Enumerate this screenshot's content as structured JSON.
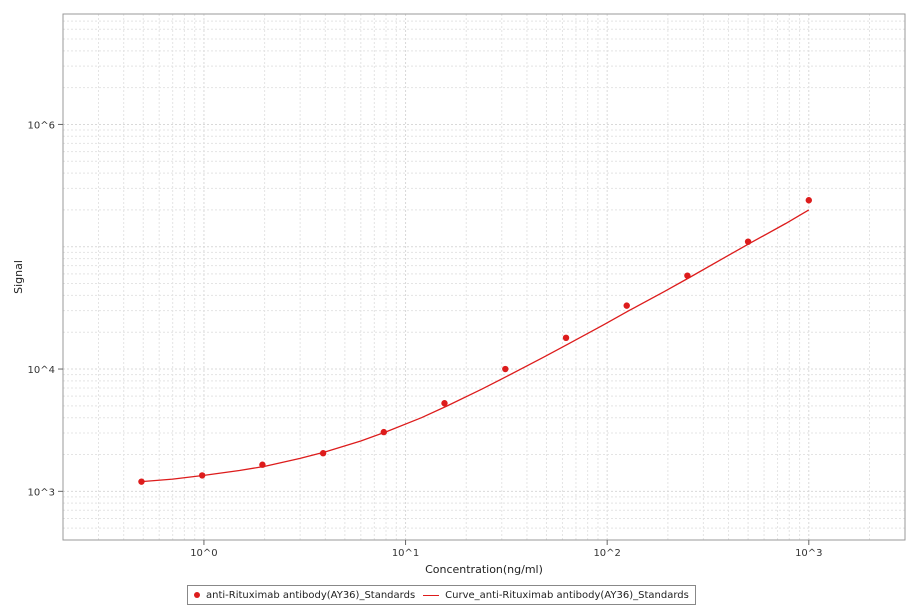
{
  "colors": {
    "series": "#dd1c1c",
    "grid": "#d9d9d9",
    "grid_minor": "#e4e4e4",
    "frame": "#999999"
  },
  "chart_data": {
    "type": "scatter",
    "title": "",
    "xlabel": "Concentration(ng/ml)",
    "ylabel": "Signal",
    "x_scale": "log",
    "y_scale": "log",
    "xlim": [
      0.2,
      3000
    ],
    "ylim": [
      400,
      8000000
    ],
    "grid": true,
    "legend_position": "bottom",
    "x_ticks": [
      {
        "value": 1,
        "label": "10^0"
      },
      {
        "value": 10,
        "label": "10^1"
      },
      {
        "value": 100,
        "label": "10^2"
      },
      {
        "value": 1000,
        "label": "10^3"
      }
    ],
    "y_ticks": [
      {
        "value": 1000,
        "label": "10^3"
      },
      {
        "value": 10000,
        "label": "10^4"
      },
      {
        "value": 1000000,
        "label": "10^6"
      }
    ],
    "series": [
      {
        "name": "anti-Rituximab antibody(AY36)_Standards",
        "kind": "points",
        "x": [
          0.49,
          0.98,
          1.95,
          3.9,
          7.8,
          15.6,
          31.25,
          62.5,
          125,
          250,
          500,
          1000
        ],
        "y": [
          1200,
          1350,
          1650,
          2050,
          3050,
          5250,
          10000,
          18000,
          33000,
          58000,
          110000,
          240000
        ]
      },
      {
        "name": "Curve_anti-Rituximab antibody(AY36)_Standards",
        "kind": "line",
        "x": [
          0.49,
          0.7,
          1,
          1.5,
          2,
          3,
          4,
          6,
          8,
          12,
          16,
          24,
          32,
          48,
          64,
          96,
          128,
          192,
          256,
          384,
          512,
          768,
          1000
        ],
        "y": [
          1200,
          1260,
          1350,
          1480,
          1600,
          1860,
          2100,
          2580,
          3060,
          4000,
          4980,
          6880,
          8750,
          12400,
          16000,
          23000,
          30000,
          43000,
          56000,
          82000,
          107000,
          155000,
          200000
        ]
      }
    ]
  }
}
